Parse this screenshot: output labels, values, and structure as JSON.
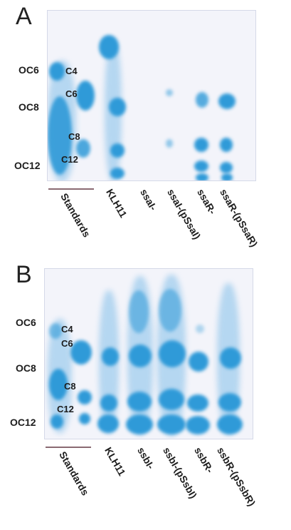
{
  "panels": [
    {
      "letter": "A",
      "row_labels": [
        "OC6",
        "OC8",
        "OC12"
      ],
      "inner_labels": [
        "C4",
        "C6",
        "C8",
        "C12"
      ],
      "lane_labels": [
        "Standards",
        "KLH11",
        "ssaI-",
        "ssaI-(pSsaI)",
        "ssaR-",
        "ssaR-(pSsaR)"
      ]
    },
    {
      "letter": "B",
      "row_labels": [
        "OC6",
        "OC8",
        "OC12"
      ],
      "inner_labels": [
        "C4",
        "C6",
        "C8",
        "C12"
      ],
      "lane_labels": [
        "Standards",
        "KLH11",
        "ssbI-",
        "ssbI-(pSsbI)",
        "ssbR-",
        "ssbR-(pSsbR)"
      ]
    }
  ],
  "colors": {
    "spot": "#2f9ad8",
    "plate": "#f3f4fa",
    "bar": "#8a6a72"
  }
}
